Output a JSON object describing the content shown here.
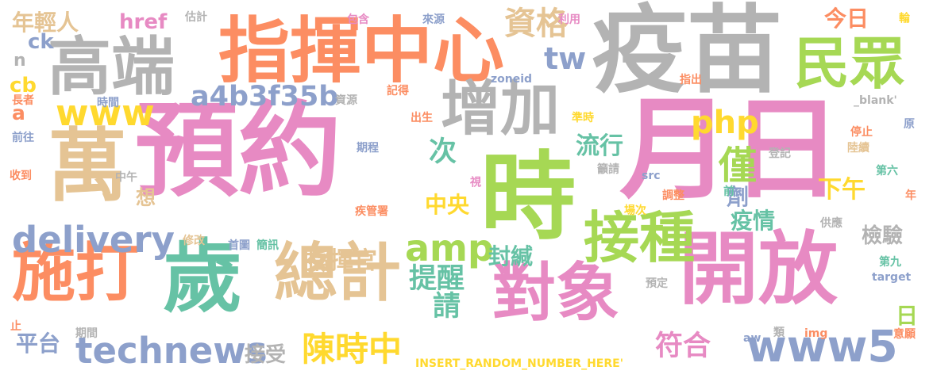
{
  "words": [
    {
      "text": "預約",
      "color": "#e78ac3"
    },
    {
      "text": "月日",
      "color": "#e78ac3"
    },
    {
      "text": "疫苗",
      "color": "#b3b3b3"
    },
    {
      "text": "時",
      "color": "#a6d854"
    },
    {
      "text": "萬",
      "color": "#e5c494"
    },
    {
      "text": "歲",
      "color": "#66c2a5"
    },
    {
      "text": "開放",
      "color": "#e78ac3"
    },
    {
      "text": "指揮中心",
      "color": "#fc8d62"
    },
    {
      "text": "高端",
      "color": "#b3b3b3"
    },
    {
      "text": "增加",
      "color": "#b3b3b3"
    },
    {
      "text": "總計",
      "color": "#e5c494"
    },
    {
      "text": "對象",
      "color": "#e78ac3"
    },
    {
      "text": "施打",
      "color": "#fc8d62"
    },
    {
      "text": "民眾",
      "color": "#a6d854"
    },
    {
      "text": "接種",
      "color": "#a6d854"
    },
    {
      "text": "technews",
      "color": "#8da0cb"
    },
    {
      "text": "www5",
      "color": "#8da0cb"
    },
    {
      "text": "delivery",
      "color": "#8da0cb"
    },
    {
      "text": "陳時中",
      "color": "#ffd92f"
    },
    {
      "text": "僅",
      "color": "#a6d854"
    },
    {
      "text": "amp",
      "color": "#a6d854"
    },
    {
      "text": "php",
      "color": "#ffd92f"
    },
    {
      "text": "www",
      "color": "#ffd92f"
    },
    {
      "text": "資格",
      "color": "#e5c494"
    },
    {
      "text": "a4b3f35b",
      "color": "#8da0cb"
    },
    {
      "text": "提醒",
      "color": "#66c2a5"
    },
    {
      "text": "符合",
      "color": "#e78ac3"
    },
    {
      "text": "指揮官",
      "color": "#e5c494"
    },
    {
      "text": "流行",
      "color": "#66c2a5"
    },
    {
      "text": "tw",
      "color": "#8da0cb"
    },
    {
      "text": "年輕人",
      "color": "#e5c494"
    },
    {
      "text": "請",
      "color": "#66c2a5"
    },
    {
      "text": "下午",
      "color": "#ffd92f"
    },
    {
      "text": "平台",
      "color": "#8da0cb"
    },
    {
      "text": "次",
      "color": "#66c2a5"
    },
    {
      "text": "劑",
      "color": "#8da0cb"
    },
    {
      "text": "疫情",
      "color": "#66c2a5"
    },
    {
      "text": "檢驗",
      "color": "#b3b3b3"
    },
    {
      "text": "中央",
      "color": "#ffd92f"
    },
    {
      "text": "封緘",
      "color": "#66c2a5"
    },
    {
      "text": "接受",
      "color": "#b3b3b3"
    },
    {
      "text": "今日",
      "color": "#fc8d62"
    },
    {
      "text": "日",
      "color": "#a6d854"
    },
    {
      "text": "href",
      "color": "#e78ac3"
    },
    {
      "text": "想",
      "color": "#e5c494"
    },
    {
      "text": "ck",
      "color": "#8da0cb"
    },
    {
      "text": "cb",
      "color": "#ffd92f"
    },
    {
      "text": "a",
      "color": "#fc8d62"
    },
    {
      "text": "n",
      "color": "#b3b3b3"
    },
    {
      "text": "估計",
      "color": "#b3b3b3"
    },
    {
      "text": "包含",
      "color": "#e78ac3"
    },
    {
      "text": "來源",
      "color": "#8da0cb"
    },
    {
      "text": "利用",
      "color": "#e78ac3"
    },
    {
      "text": "輪",
      "color": "#ffd92f"
    },
    {
      "text": "zoneid",
      "color": "#8da0cb"
    },
    {
      "text": "指出",
      "color": "#fc8d62"
    },
    {
      "text": "_blank'",
      "color": "#b3b3b3"
    },
    {
      "text": "記得",
      "color": "#fc8d62"
    },
    {
      "text": "資源",
      "color": "#b3b3b3"
    },
    {
      "text": "時間",
      "color": "#8da0cb"
    },
    {
      "text": "長者",
      "color": "#fc8d62"
    },
    {
      "text": "出生",
      "color": "#fc8d62"
    },
    {
      "text": "準時",
      "color": "#ffd92f"
    },
    {
      "text": "停止",
      "color": "#fc8d62"
    },
    {
      "text": "原",
      "color": "#8da0cb"
    },
    {
      "text": "前往",
      "color": "#8da0cb"
    },
    {
      "text": "期程",
      "color": "#8da0cb"
    },
    {
      "text": "陸續",
      "color": "#e5c494"
    },
    {
      "text": "登記",
      "color": "#b3b3b3"
    },
    {
      "text": "收到",
      "color": "#fc8d62"
    },
    {
      "text": "中午",
      "color": "#b3b3b3"
    },
    {
      "text": "視",
      "color": "#e78ac3"
    },
    {
      "text": "籲請",
      "color": "#b3b3b3"
    },
    {
      "text": "src",
      "color": "#8da0cb"
    },
    {
      "text": "第六",
      "color": "#66c2a5"
    },
    {
      "text": "前",
      "color": "#66c2a5"
    },
    {
      "text": "調整",
      "color": "#fc8d62"
    },
    {
      "text": "年",
      "color": "#fc8d62"
    },
    {
      "text": "疾管署",
      "color": "#fc8d62"
    },
    {
      "text": "場次",
      "color": "#ffd92f"
    },
    {
      "text": "供應",
      "color": "#b3b3b3"
    },
    {
      "text": "修改",
      "color": "#e5c494"
    },
    {
      "text": "首圖",
      "color": "#8da0cb"
    },
    {
      "text": "簡訊",
      "color": "#66c2a5"
    },
    {
      "text": "第九",
      "color": "#66c2a5"
    },
    {
      "text": "預定",
      "color": "#b3b3b3"
    },
    {
      "text": "target",
      "color": "#8da0cb"
    },
    {
      "text": "止",
      "color": "#fc8d62"
    },
    {
      "text": "期間",
      "color": "#b3b3b3"
    },
    {
      "text": "aw",
      "color": "#8da0cb"
    },
    {
      "text": "類",
      "color": "#b3b3b3"
    },
    {
      "text": "img",
      "color": "#fc8d62"
    },
    {
      "text": "意願",
      "color": "#fc8d62"
    },
    {
      "text": "INSERT_RANDOM_NUMBER_HERE'",
      "color": "#ffd92f"
    }
  ]
}
